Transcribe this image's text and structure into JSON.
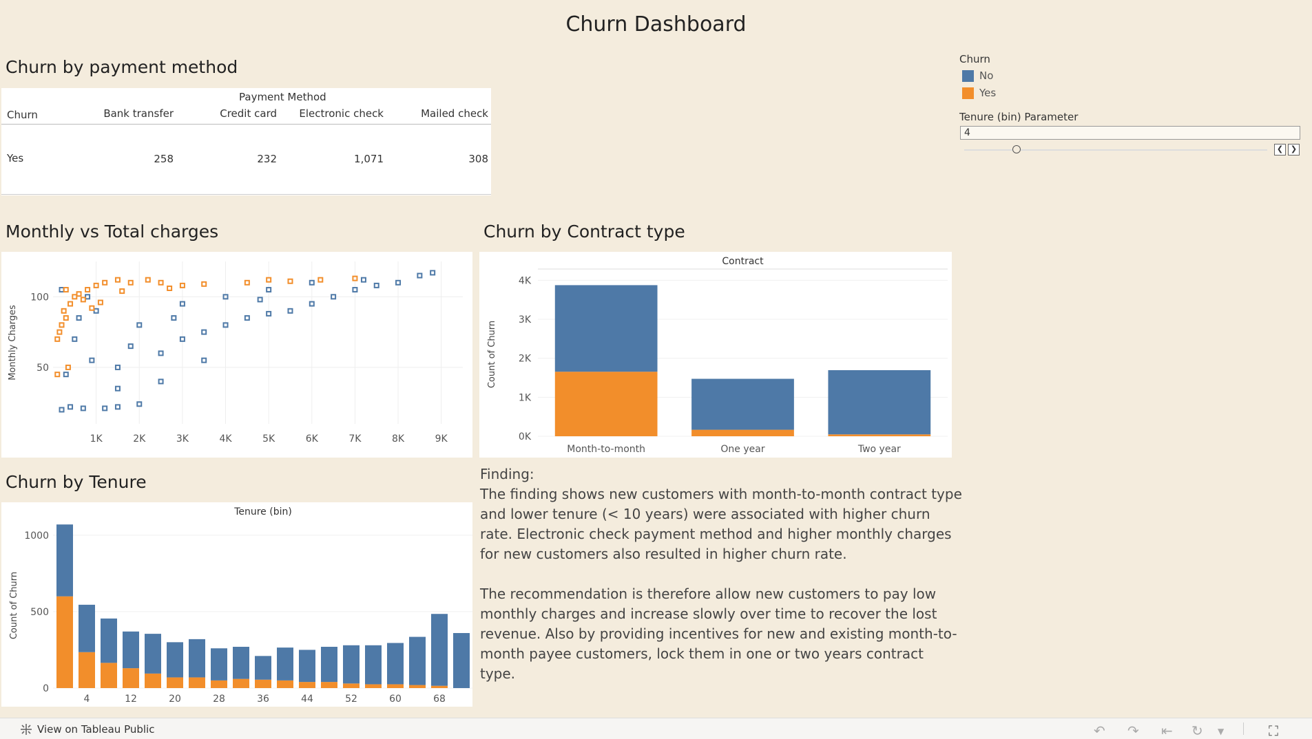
{
  "dashboard": {
    "title": "Churn Dashboard"
  },
  "colors": {
    "no": "#4e79a7",
    "yes": "#f28e2b",
    "background": "#f4ecdd"
  },
  "payment_table": {
    "section_title": "Churn by payment method",
    "group_header": "Payment Method",
    "row_header": "Churn",
    "columns": [
      "Bank transfer",
      "Credit card",
      "Electronic check",
      "Mailed check"
    ],
    "row_label": "Yes",
    "values": [
      "258",
      "232",
      "1,071",
      "308"
    ]
  },
  "legend": {
    "title": "Churn",
    "items": [
      {
        "label": "No"
      },
      {
        "label": "Yes"
      }
    ]
  },
  "parameter": {
    "label": "Tenure (bin) Parameter",
    "value": "4",
    "prev_icon": "chevron-left-icon",
    "next_icon": "chevron-right-icon"
  },
  "scatter_section": {
    "title": "Monthly vs Total charges"
  },
  "contract_section": {
    "title": "Churn by Contract type"
  },
  "tenure_section": {
    "title": "Churn by Tenure"
  },
  "chart_data": [
    {
      "type": "scatter",
      "title": "Monthly vs Total charges",
      "xlabel": "",
      "ylabel": "Monthly Charges",
      "xlim": [
        0,
        9500
      ],
      "ylim": [
        10,
        125
      ],
      "x_ticks": [
        "1K",
        "2K",
        "3K",
        "4K",
        "5K",
        "6K",
        "7K",
        "8K",
        "9K"
      ],
      "x_tick_values": [
        1000,
        2000,
        3000,
        4000,
        5000,
        6000,
        7000,
        8000,
        9000
      ],
      "y_ticks": [
        "50",
        "100"
      ],
      "y_tick_values": [
        50,
        100
      ],
      "grid": true,
      "series": [
        {
          "name": "No",
          "points": [
            [
              200,
              20
            ],
            [
              400,
              22
            ],
            [
              700,
              21
            ],
            [
              1200,
              21
            ],
            [
              1500,
              22
            ],
            [
              2000,
              24
            ],
            [
              300,
              45
            ],
            [
              900,
              55
            ],
            [
              1500,
              50
            ],
            [
              2500,
              60
            ],
            [
              3000,
              70
            ],
            [
              3500,
              75
            ],
            [
              4000,
              80
            ],
            [
              4500,
              85
            ],
            [
              5000,
              88
            ],
            [
              5500,
              90
            ],
            [
              6000,
              95
            ],
            [
              6500,
              100
            ],
            [
              7000,
              105
            ],
            [
              7500,
              108
            ],
            [
              8000,
              110
            ],
            [
              8500,
              115
            ],
            [
              8800,
              117
            ],
            [
              2000,
              80
            ],
            [
              1000,
              90
            ],
            [
              3000,
              95
            ],
            [
              4000,
              100
            ],
            [
              5000,
              105
            ],
            [
              6000,
              110
            ],
            [
              1500,
              35
            ],
            [
              2500,
              40
            ],
            [
              3500,
              55
            ],
            [
              500,
              70
            ],
            [
              800,
              100
            ],
            [
              200,
              105
            ],
            [
              600,
              85
            ],
            [
              1800,
              65
            ],
            [
              2800,
              85
            ],
            [
              4800,
              98
            ],
            [
              7200,
              112
            ]
          ]
        },
        {
          "name": "Yes",
          "points": [
            [
              100,
              70
            ],
            [
              150,
              75
            ],
            [
              200,
              80
            ],
            [
              300,
              85
            ],
            [
              250,
              90
            ],
            [
              400,
              95
            ],
            [
              500,
              100
            ],
            [
              600,
              102
            ],
            [
              800,
              105
            ],
            [
              1000,
              108
            ],
            [
              1200,
              110
            ],
            [
              1500,
              112
            ],
            [
              1800,
              110
            ],
            [
              2200,
              112
            ],
            [
              2500,
              110
            ],
            [
              3000,
              108
            ],
            [
              4500,
              110
            ],
            [
              5000,
              112
            ],
            [
              5500,
              111
            ],
            [
              6200,
              112
            ],
            [
              7000,
              113
            ],
            [
              300,
              105
            ],
            [
              700,
              98
            ],
            [
              900,
              92
            ],
            [
              100,
              45
            ],
            [
              350,
              50
            ],
            [
              1100,
              96
            ],
            [
              1600,
              104
            ],
            [
              2700,
              106
            ],
            [
              3500,
              109
            ]
          ]
        }
      ]
    },
    {
      "type": "bar",
      "title": "Contract",
      "xlabel": "",
      "ylabel": "Count of Churn",
      "categories": [
        "Month-to-month",
        "One year",
        "Two year"
      ],
      "stacked": true,
      "ylim": [
        0,
        4200
      ],
      "y_ticks": [
        "0K",
        "1K",
        "2K",
        "3K",
        "4K"
      ],
      "y_tick_values": [
        0,
        1000,
        2000,
        3000,
        4000
      ],
      "series": [
        {
          "name": "No",
          "values": [
            2220,
            1307,
            1647
          ]
        },
        {
          "name": "Yes",
          "values": [
            1655,
            166,
            48
          ]
        }
      ]
    },
    {
      "type": "bar",
      "title": "Tenure (bin)",
      "xlabel": "",
      "ylabel": "Count of Churn",
      "categories": [
        "0",
        "4",
        "8",
        "12",
        "16",
        "20",
        "24",
        "28",
        "32",
        "36",
        "40",
        "44",
        "48",
        "52",
        "56",
        "60",
        "64",
        "68",
        "72"
      ],
      "x_tick_labels": [
        "4",
        "12",
        "20",
        "28",
        "36",
        "44",
        "52",
        "60",
        "68"
      ],
      "stacked": true,
      "ylim": [
        0,
        1080
      ],
      "y_ticks": [
        "0",
        "500",
        "1000"
      ],
      "y_tick_values": [
        0,
        500,
        1000
      ],
      "series": [
        {
          "name": "No",
          "values": [
            470,
            310,
            290,
            240,
            260,
            230,
            250,
            210,
            210,
            155,
            215,
            210,
            230,
            250,
            255,
            270,
            315,
            470,
            360
          ]
        },
        {
          "name": "Yes",
          "values": [
            600,
            235,
            165,
            130,
            95,
            70,
            70,
            50,
            60,
            55,
            50,
            40,
            40,
            30,
            25,
            25,
            20,
            15,
            0
          ]
        }
      ]
    }
  ],
  "finding": {
    "heading": "Finding:",
    "paragraph1": "The finding shows new customers with month-to-month contract type and lower tenure (< 10 years) were associated with higher churn rate. Electronic check payment method and higher monthly charges for new customers also resulted in higher churn rate.",
    "paragraph2": "The recommendation is therefore allow new customers to pay low monthly charges and increase slowly over time to recover the lost revenue. Also by providing incentives for new and existing month-to-month payee customers, lock them in one or two years contract type."
  },
  "footer": {
    "link_label": "View on Tableau Public",
    "link_icon": "tableau-logo-icon"
  }
}
